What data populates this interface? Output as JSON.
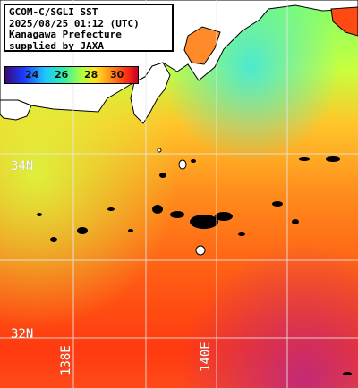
{
  "title": {
    "line1": "GCOM-C/SGLI SST",
    "line2": "2025/08/25 01:12 (UTC)",
    "line3": "Kanagawa Prefecture",
    "line4": "supplied by JAXA"
  },
  "legend": {
    "ticks": [
      "24",
      "26",
      "28",
      "30"
    ],
    "colors": [
      "#3a0a78",
      "#1a3cff",
      "#1fc6ff",
      "#2ef0a8",
      "#b4ff3a",
      "#ffe31f",
      "#ff8a1a",
      "#ff2c10",
      "#c2002a"
    ]
  },
  "grid": {
    "lat_labels": [
      "34N",
      "32N"
    ],
    "lon_labels": [
      "138E",
      "140E"
    ]
  }
}
